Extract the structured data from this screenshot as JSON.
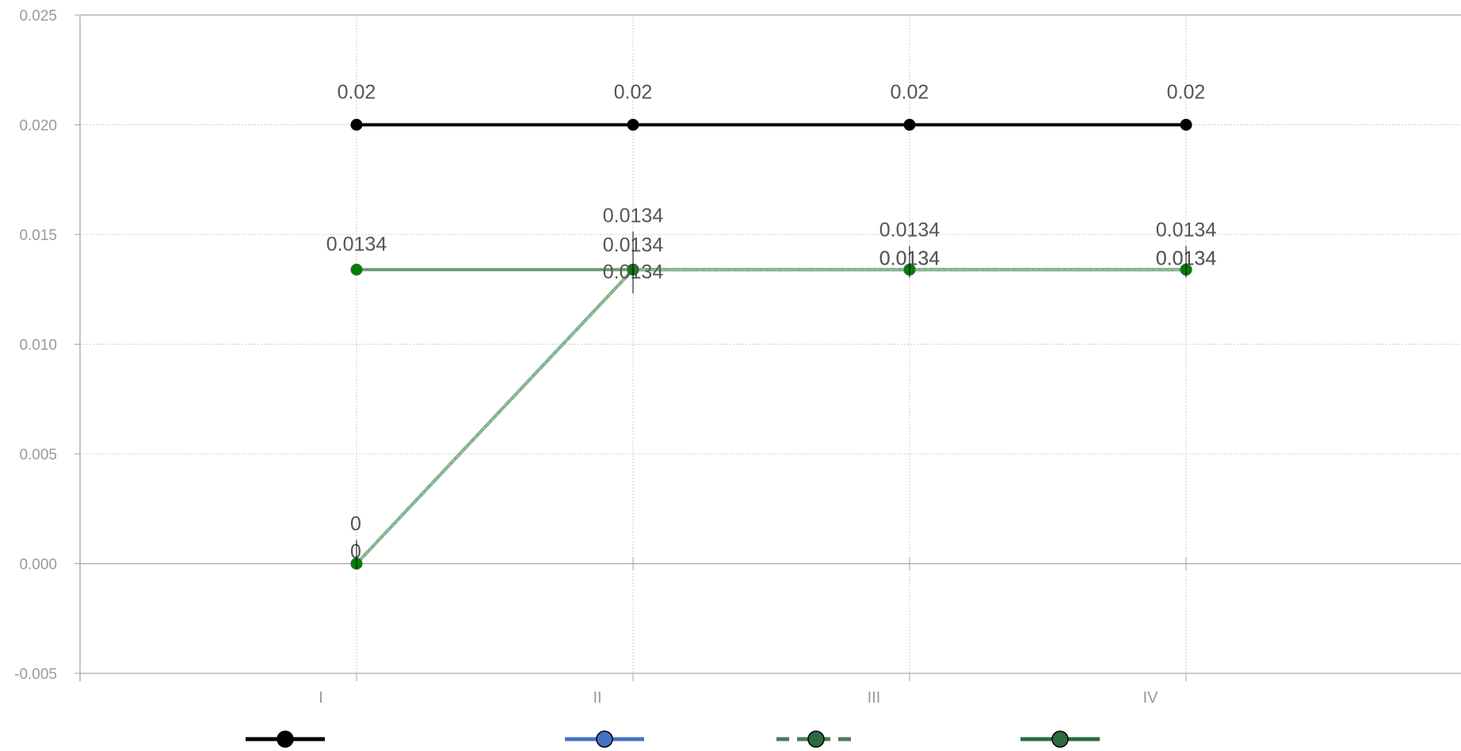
{
  "chart_data": {
    "type": "line",
    "categories": [
      "I",
      "II",
      "III",
      "IV"
    ],
    "ylim": [
      -0.005,
      0.025
    ],
    "y_ticks": [
      "-0.005",
      "0.000",
      "0.005",
      "0.010",
      "0.015",
      "0.020",
      "0.025"
    ],
    "grid": true,
    "legend_position": "bottom",
    "series": [
      {
        "values": [
          0.02,
          0.02,
          0.02,
          0.02
        ],
        "labels": [
          "0.02",
          "0.02",
          "0.02",
          "0.02"
        ],
        "color": "#000000",
        "marker_color": "#000000",
        "legend_marker_color": "#000000",
        "dashed": false
      },
      {
        "values": [
          0.0134,
          0.0134,
          0.0134,
          0.0134
        ],
        "labels": [
          "0.0134",
          "0.0134",
          "0.0134",
          "0.0134"
        ],
        "color": "#6d9a79",
        "marker_color": "#008000",
        "legend_marker_color": "#4472c4",
        "legend_color": "#4472c4",
        "dashed": false
      },
      {
        "values": [
          0,
          0.0134,
          0.0134,
          0.0134
        ],
        "labels": [
          "0",
          "0.0134",
          "0.0134",
          "0.0134"
        ],
        "color": "#4a7a5a",
        "marker_color": "#008000",
        "legend_marker_color": "#2e6b3e",
        "dashed": true
      },
      {
        "values": [
          0,
          0.0134,
          0.0134,
          0.0134
        ],
        "labels": [
          "0",
          "0.0134",
          "0.0134",
          "0.0134"
        ],
        "color": "#7fb08a",
        "marker_color": "#008000",
        "legend_marker_color": "#2e6b3e",
        "legend_color": "#2e6b3e",
        "dashed": false
      }
    ]
  }
}
